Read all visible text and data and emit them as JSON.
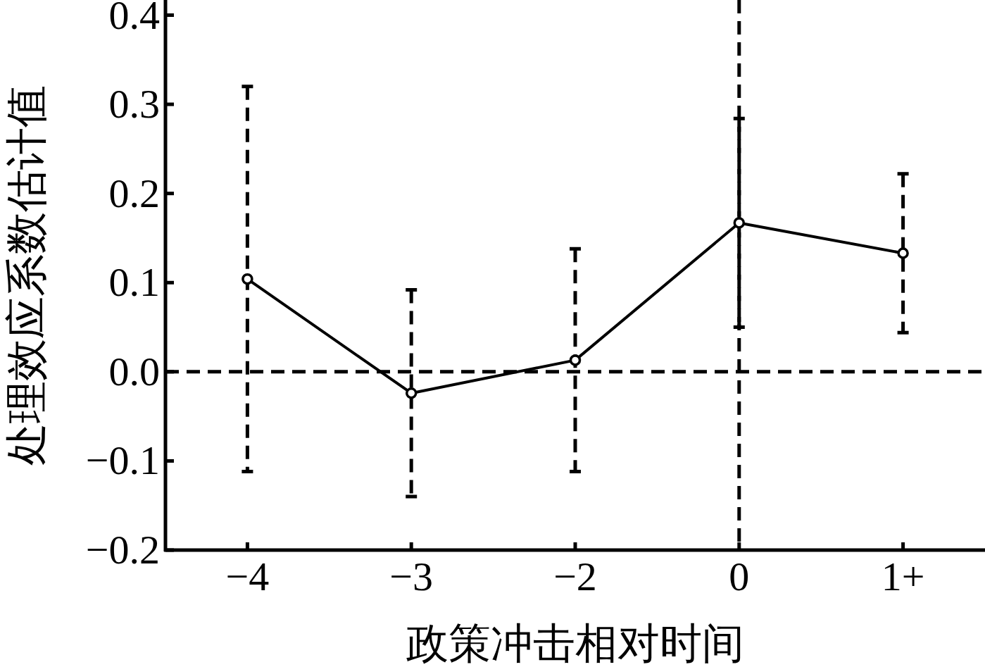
{
  "chart_data": {
    "type": "line",
    "xlabel": "政策冲击相对时间",
    "ylabel": "处理效应系数估计值",
    "categories": [
      "−4",
      "−3",
      "−2",
      "0",
      "1+"
    ],
    "series": [
      {
        "color": "#000000",
        "values": [
          0.104,
          -0.024,
          0.013,
          0.167,
          0.133
        ],
        "errors": [
          0.216,
          0.116,
          0.125,
          0.117,
          0.089
        ]
      }
    ],
    "marker": "circle",
    "line_style": "solid",
    "ylim": [
      -0.2,
      0.417
    ],
    "yticks": [
      {
        "value": -0.2,
        "label": "−0.2"
      },
      {
        "value": -0.1,
        "label": "−0.1"
      },
      {
        "value": 0,
        "label": "0.0"
      },
      {
        "value": 0.1,
        "label": "0.1"
      },
      {
        "value": 0.2,
        "label": "0.2"
      },
      {
        "value": 0.3,
        "label": "0.3"
      },
      {
        "value": 0.4,
        "label": "0.4"
      }
    ],
    "ref_lines": [
      {
        "axis": "y",
        "value": 0,
        "color": "#000000",
        "line_style": "dashed"
      },
      {
        "axis": "x",
        "value": "0",
        "color": "#000000",
        "line_style": "dashed"
      }
    ]
  }
}
